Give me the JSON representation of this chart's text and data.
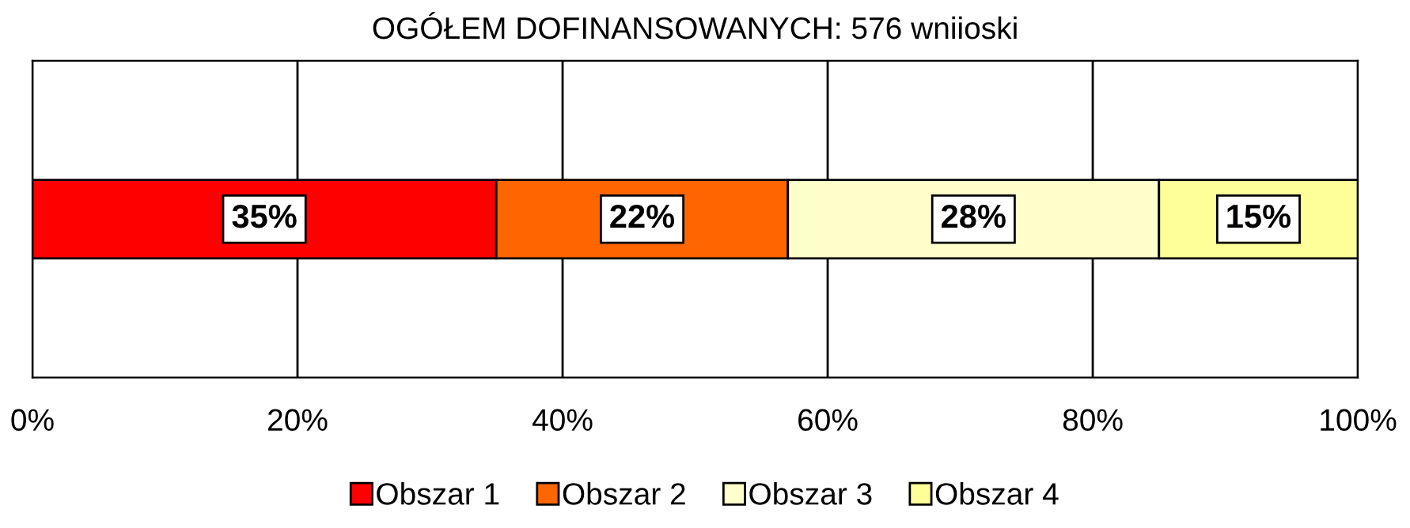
{
  "chart_data": {
    "type": "bar",
    "orientation": "horizontal",
    "stacked": true,
    "title": "OGÓŁEM DOFINANSOWANYCH: 576 wniioski",
    "categories": [
      null
    ],
    "series": [
      {
        "name": "Obszar 1",
        "color": "#ff0000",
        "values": [
          35
        ],
        "value_labels": [
          "35%"
        ]
      },
      {
        "name": "Obszar 2",
        "color": "#ff6600",
        "values": [
          22
        ],
        "value_labels": [
          "22%"
        ]
      },
      {
        "name": "Obszar 3",
        "color": "#ffffcc",
        "values": [
          28
        ],
        "value_labels": [
          "28%"
        ]
      },
      {
        "name": "Obszar 4",
        "color": "#ffff99",
        "values": [
          15
        ],
        "value_labels": [
          "15%"
        ]
      }
    ],
    "xlim": [
      0,
      100
    ],
    "xticks": [
      {
        "value": 0,
        "label": "0%"
      },
      {
        "value": 20,
        "label": "20%"
      },
      {
        "value": 40,
        "label": "40%"
      },
      {
        "value": 60,
        "label": "60%"
      },
      {
        "value": 80,
        "label": "80%"
      },
      {
        "value": 100,
        "label": "100%"
      }
    ],
    "grid": "x",
    "legend": "bottom"
  }
}
